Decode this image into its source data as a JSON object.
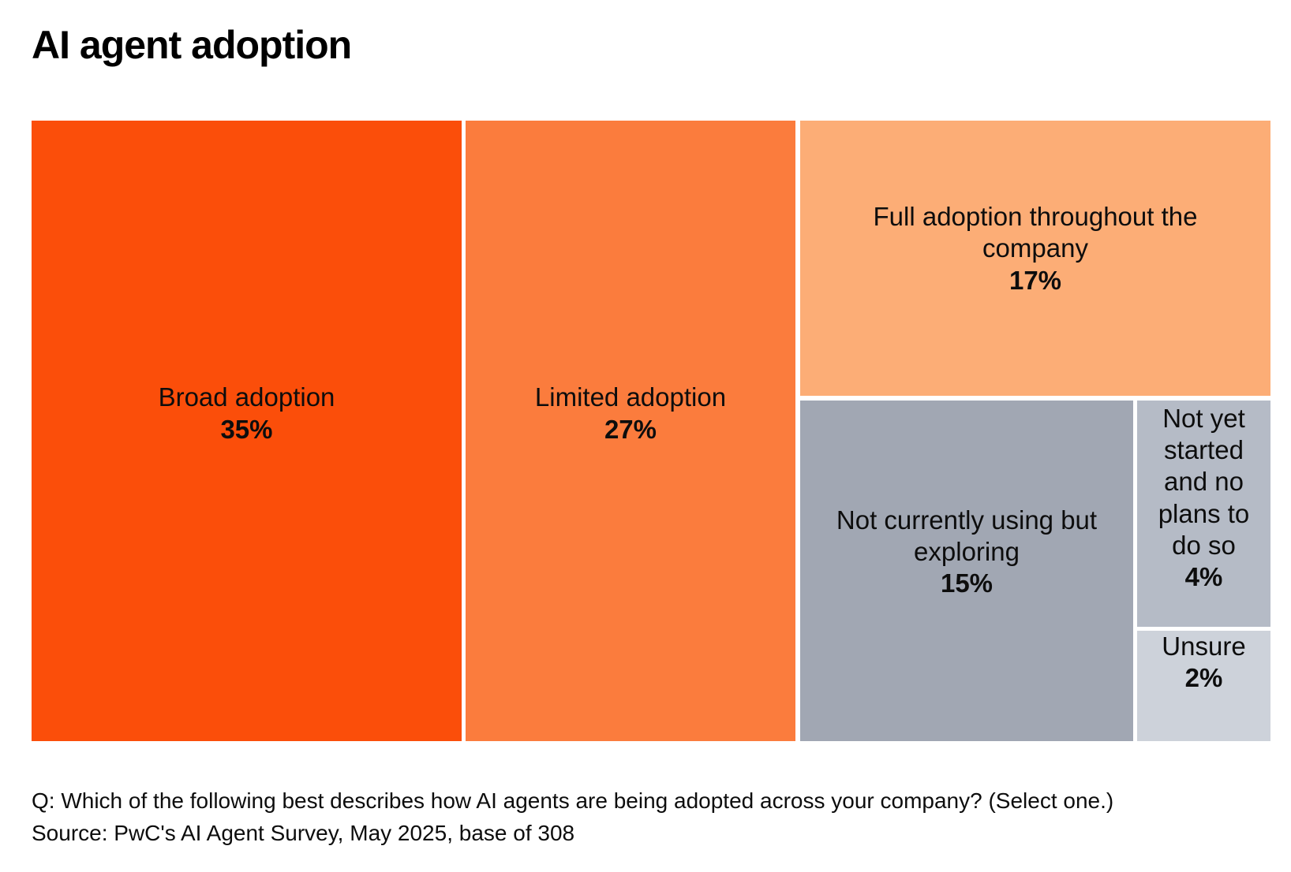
{
  "title": "AI agent adoption",
  "footer": {
    "question": "Q: Which of the following best describes how AI agents are being adopted across your company? (Select one.)",
    "source": "Source: PwC's AI Agent Survey, May 2025, base of 308"
  },
  "colors": {
    "background": "#ffffff",
    "text": "#0d0d0d",
    "accent_orange_dark": "#fb4e0a",
    "accent_orange_mid": "#fb7c3d",
    "accent_orange_light": "#fcad76",
    "gray_dark": "#a1a7b3",
    "gray_mid": "#b5bbc6",
    "gray_light": "#cdd2da"
  },
  "chart_data": {
    "type": "treemap",
    "title": "AI agent adoption",
    "unit": "percent of respondents",
    "total": 100,
    "legend_position": "none",
    "segments": [
      {
        "label": "Broad adoption",
        "value": 35,
        "value_label": "35%",
        "color": "#fb4e0a"
      },
      {
        "label": "Limited adoption",
        "value": 27,
        "value_label": "27%",
        "color": "#fb7c3d"
      },
      {
        "label": "Full adoption throughout the company",
        "value": 17,
        "value_label": "17%",
        "color": "#fcad76"
      },
      {
        "label": "Not currently using but exploring",
        "value": 15,
        "value_label": "15%",
        "color": "#a1a7b3"
      },
      {
        "label": "Not yet started and no plans to do so",
        "value": 4,
        "value_label": "4%",
        "color": "#b5bbc6"
      },
      {
        "label": "Unsure",
        "value": 2,
        "value_label": "2%",
        "color": "#cdd2da"
      }
    ],
    "annotations": [
      "Q: Which of the following best describes how AI agents are being adopted across your company? (Select one.)",
      "Source: PwC's AI Agent Survey, May 2025, base of 308"
    ]
  }
}
